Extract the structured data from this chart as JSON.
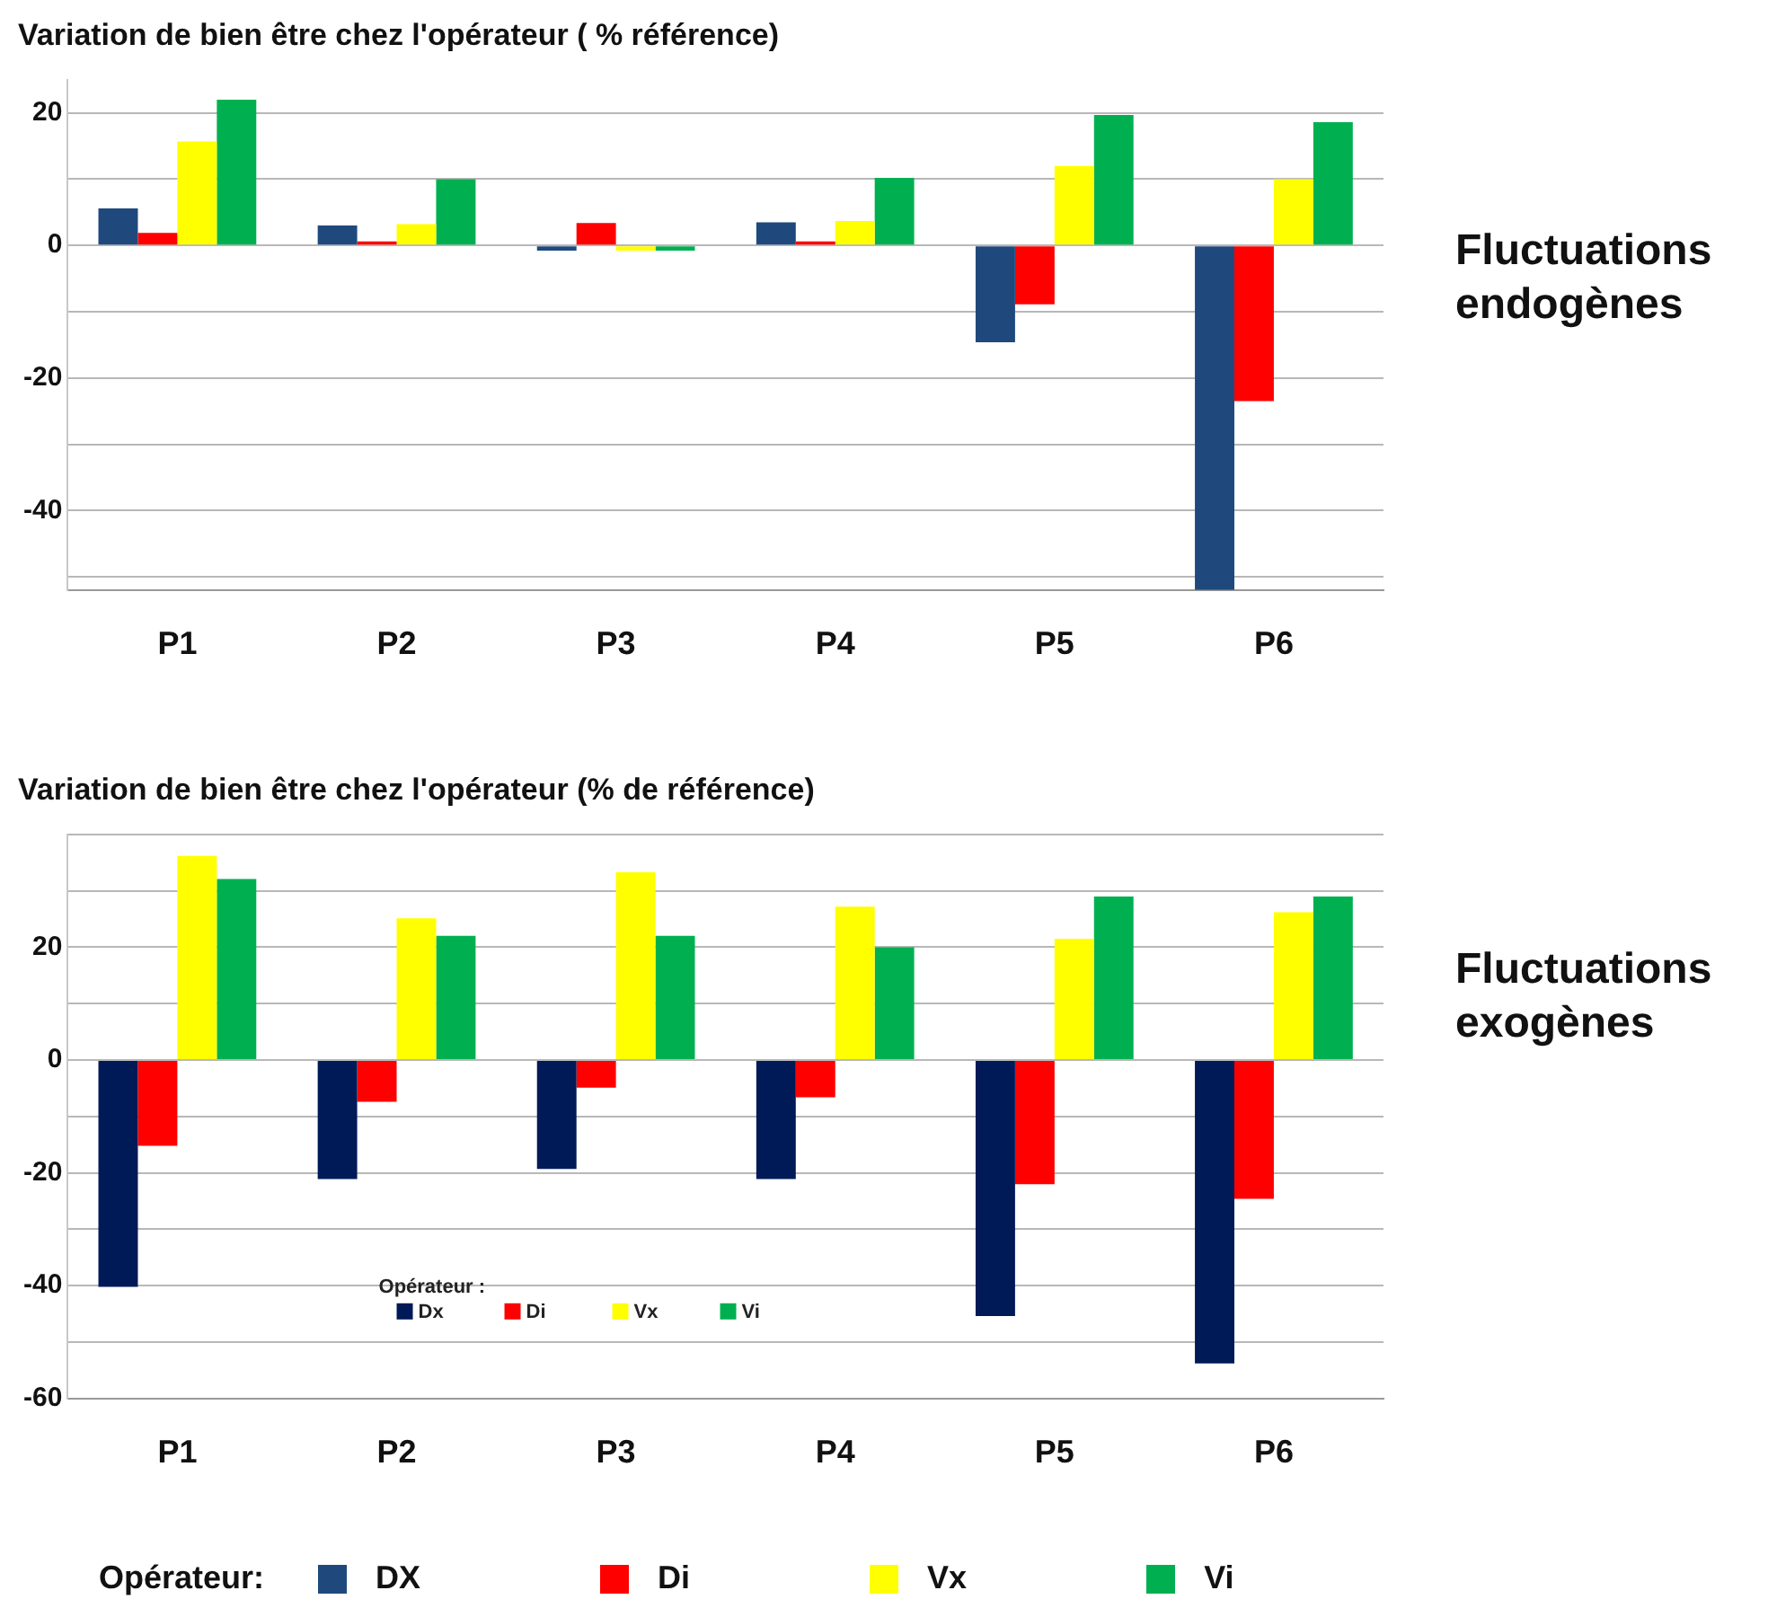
{
  "chart_data": [
    {
      "type": "bar",
      "title": "Variation de bien être chez l'opérateur ( % référence)",
      "categories": [
        "P1",
        "P2",
        "P3",
        "P4",
        "P5",
        "P6"
      ],
      "series": [
        {
          "name": "DX",
          "color": "#1f497d",
          "values": [
            5.6,
            3,
            -0.8,
            3.5,
            -14.6,
            -52
          ]
        },
        {
          "name": "Di",
          "color": "#ff0000",
          "values": [
            1.9,
            0.6,
            3.4,
            0.6,
            -8.9,
            -23.5
          ]
        },
        {
          "name": "Vx",
          "color": "#ffff00",
          "values": [
            15.7,
            3.2,
            -0.8,
            3.7,
            12,
            10
          ]
        },
        {
          "name": "Vi",
          "color": "#00b050",
          "values": [
            22,
            10,
            -0.8,
            10.2,
            19.7,
            18.6
          ]
        }
      ],
      "ylim": [
        -52,
        25
      ],
      "yticks": [
        {
          "value": -50,
          "label": null
        },
        -40,
        {
          "value": -30,
          "label": null
        },
        -20,
        {
          "value": -10,
          "label": null
        },
        0,
        {
          "value": 10,
          "label": null
        },
        20
      ],
      "grid": "y",
      "legend": "bottom",
      "legend_title": "Opérateur:",
      "annotations": [
        "Fluctuations endogènes"
      ]
    },
    {
      "type": "bar",
      "title": "Variation de bien être chez l'opérateur (% de référence)",
      "categories": [
        "P1",
        "P2",
        "P3",
        "P4",
        "P5",
        "P6"
      ],
      "series": [
        {
          "name": "Dx",
          "color": "#001a57",
          "values": [
            -40.2,
            -21.1,
            -19.3,
            -21.1,
            -45.4,
            -53.8
          ]
        },
        {
          "name": "Di",
          "color": "#ff0000",
          "values": [
            -15.2,
            -7.4,
            -4.9,
            -6.6,
            -22,
            -24.6
          ]
        },
        {
          "name": "Vx",
          "color": "#ffff00",
          "values": [
            36.2,
            25.1,
            33.3,
            27.2,
            21.5,
            26.2
          ]
        },
        {
          "name": "Vi",
          "color": "#00b050",
          "values": [
            32.1,
            22,
            22,
            20,
            29,
            29
          ]
        }
      ],
      "ylim": [
        -60,
        40
      ],
      "yticks": [
        -60,
        {
          "value": -50,
          "label": null
        },
        -40,
        {
          "value": -30,
          "label": null
        },
        -20,
        {
          "value": -10,
          "label": null
        },
        0,
        {
          "value": 10,
          "label": null
        },
        20,
        {
          "value": 30,
          "label": null
        },
        {
          "value": 40,
          "label": null
        }
      ],
      "grid": "y",
      "legend": "bottom left",
      "legend_title": "Opérateur :",
      "annotations": [
        "Fluctuations exogènes"
      ]
    }
  ]
}
